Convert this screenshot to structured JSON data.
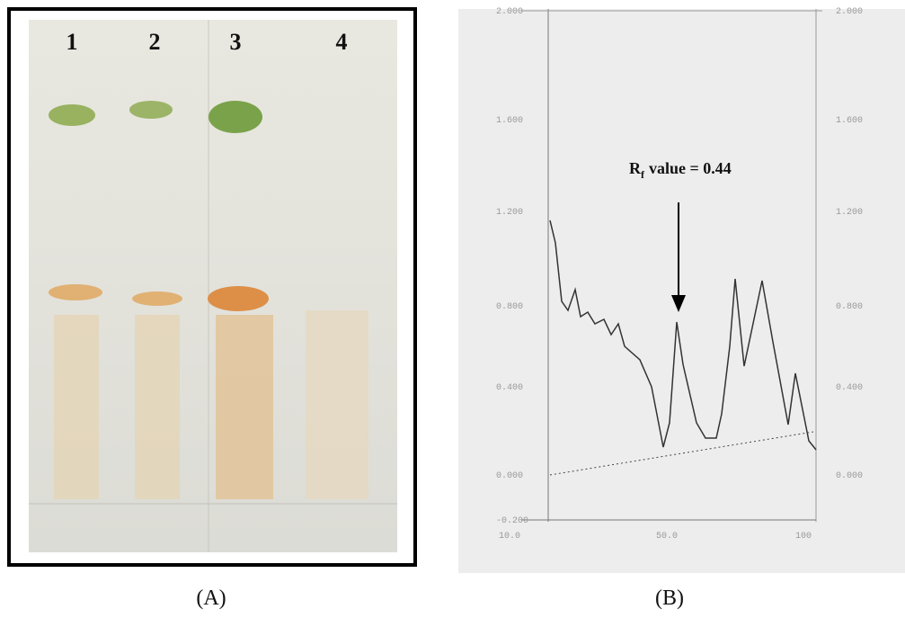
{
  "panel_a": {
    "lanes": [
      "1",
      "2",
      "3",
      "4"
    ],
    "caption": "(A)"
  },
  "panel_b": {
    "annotation": {
      "symbol": "R",
      "subscript": "f",
      "text": "value = 0.44"
    },
    "left_ticks": [
      "2.000",
      "1.600",
      "1.200",
      "0.800",
      "0.400",
      "0.000",
      "-0.200"
    ],
    "right_ticks": [
      "2.000",
      "1.600",
      "1.200",
      "0.800",
      "0.400",
      "0.000"
    ],
    "x_ticks": [
      "10.0",
      "50.0",
      "100"
    ],
    "caption": "(B)"
  }
}
